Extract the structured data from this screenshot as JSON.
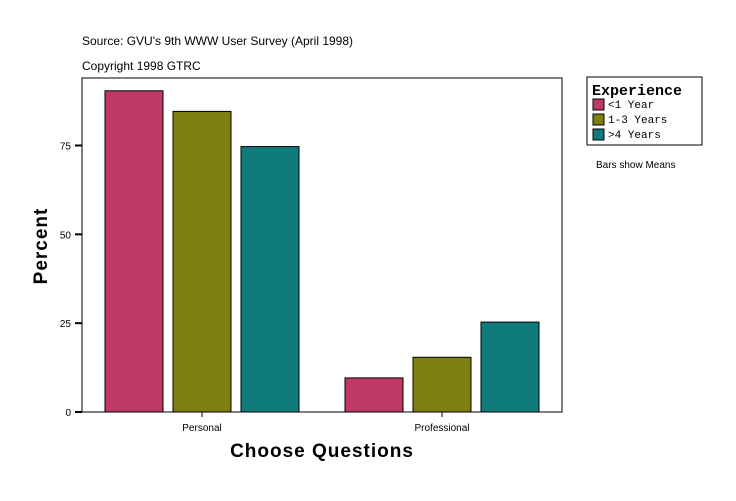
{
  "chart_data": {
    "type": "bar",
    "title": "Source: GVU's 9th WWW User Survey (April 1998)",
    "subtitle": "Copyright 1998 GTRC",
    "xlabel": "Choose Questions",
    "ylabel": "Percent",
    "categories": [
      "Personal",
      "Professional"
    ],
    "ylim": [
      0,
      94
    ],
    "yticks": [
      0,
      25,
      50,
      75
    ],
    "grid": false,
    "legend": {
      "title": "Experience",
      "placement": "right"
    },
    "note": "Bars show Means",
    "series": [
      {
        "name": "<1 Year",
        "color": "#BE3A65",
        "values": [
          90.4,
          9.6
        ]
      },
      {
        "name": "1-3 Years",
        "color": "#7F7F0F",
        "values": [
          84.6,
          15.4
        ]
      },
      {
        "name": ">4 Years",
        "color": "#0F7B7B",
        "values": [
          74.7,
          25.3
        ]
      }
    ]
  }
}
